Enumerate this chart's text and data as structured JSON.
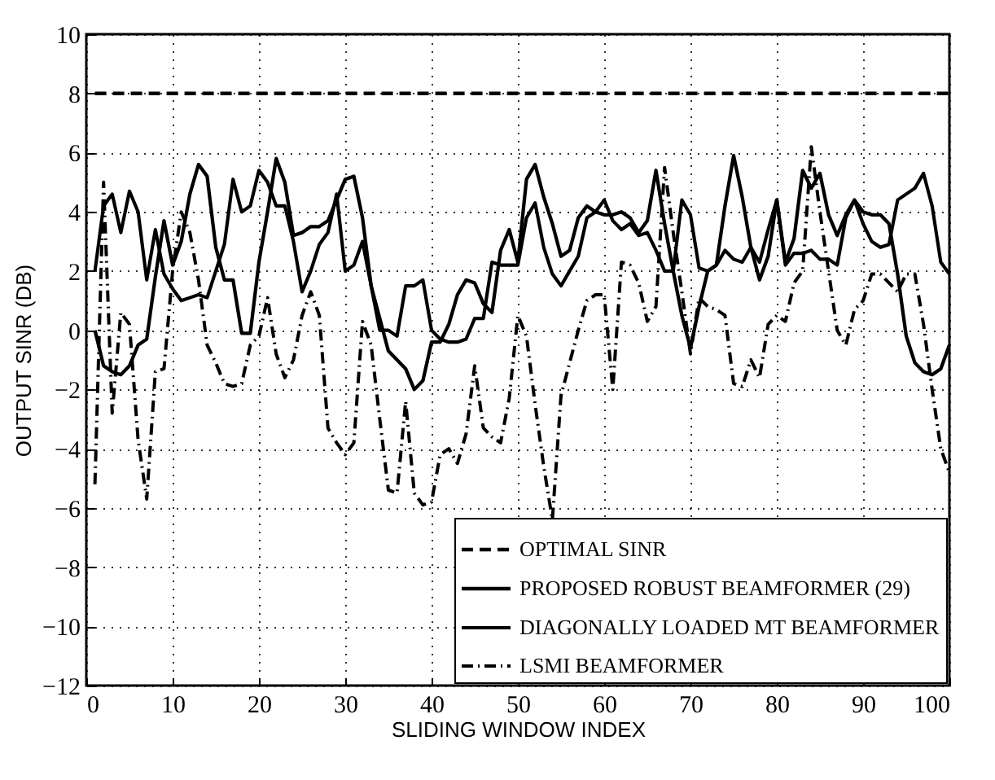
{
  "chart_data": {
    "type": "line",
    "xlabel": "SLIDING WINDOW INDEX",
    "ylabel": "OUTPUT SINR (DB)",
    "xlim": [
      0,
      100
    ],
    "xticks": [
      0,
      10,
      20,
      30,
      40,
      50,
      60,
      70,
      80,
      90,
      100
    ],
    "ylim": [
      -12,
      10
    ],
    "yticks": [
      -12,
      -10,
      -8,
      -6,
      -4,
      -2,
      0,
      2,
      4,
      6,
      8,
      10
    ],
    "grid": true,
    "legend": "bottom right",
    "marker": "none",
    "x": [
      1,
      2,
      3,
      4,
      5,
      6,
      7,
      8,
      9,
      10,
      11,
      12,
      13,
      14,
      15,
      16,
      17,
      18,
      19,
      20,
      21,
      22,
      23,
      24,
      25,
      26,
      27,
      28,
      29,
      30,
      31,
      32,
      33,
      34,
      35,
      36,
      37,
      38,
      39,
      40,
      41,
      42,
      43,
      44,
      45,
      46,
      47,
      48,
      49,
      50,
      51,
      52,
      53,
      54,
      55,
      56,
      57,
      58,
      59,
      60,
      61,
      62,
      63,
      64,
      65,
      66,
      67,
      68,
      69,
      70,
      71,
      72,
      73,
      74,
      75,
      76,
      77,
      78,
      79,
      80,
      81,
      82,
      83,
      84,
      85,
      86,
      87,
      88,
      89,
      90,
      91,
      92,
      93,
      94,
      95,
      96,
      97,
      98,
      99,
      100
    ],
    "series": [
      {
        "name": "OPTIMAL SINR",
        "color": "#000000",
        "line_style": "dashed",
        "x": [
          1,
          100
        ],
        "values": [
          8,
          8
        ]
      },
      {
        "name": "PROPOSED ROBUST BEAMFORMER (29)",
        "color": "#000000",
        "line_style": "solid",
        "values": [
          0,
          -1.2,
          -1.4,
          -1.5,
          -1.2,
          -0.5,
          -0.3,
          1.8,
          3.7,
          2.2,
          3.0,
          4.6,
          5.6,
          5.2,
          2.8,
          1.7,
          1.7,
          -0.1,
          -0.1,
          2.3,
          4.0,
          5.8,
          5.0,
          3.2,
          3.3,
          3.5,
          3.5,
          3.7,
          4.4,
          5.1,
          5.2,
          3.8,
          1.5,
          0.4,
          -0.7,
          -1.0,
          -1.3,
          -2.0,
          -1.7,
          -0.4,
          -0.4,
          0.2,
          1.2,
          1.7,
          1.6,
          0.9,
          0.6,
          2.7,
          3.4,
          2.3,
          5.1,
          5.6,
          4.5,
          3.6,
          2.5,
          2.7,
          3.8,
          4.2,
          4.0,
          3.9,
          3.9,
          4.0,
          3.8,
          3.3,
          3.7,
          5.4,
          3.6,
          2.0,
          0.5,
          -0.6,
          0.8,
          2.0,
          2.2,
          4.2,
          5.9,
          4.5,
          2.8,
          1.7,
          2.5,
          4.4,
          2.3,
          3.1,
          5.4,
          4.8,
          5.3,
          3.9,
          3.2,
          3.9,
          4.4,
          4.0,
          3.9,
          3.9,
          3.6,
          1.9,
          -0.2,
          -1.1,
          -1.4,
          -1.5,
          -1.3,
          -0.5
        ]
      },
      {
        "name": "DIAGONALLY LOADED MT BEAMFORMER",
        "color": "#000000",
        "line_style": "solid",
        "values": [
          2.0,
          4.2,
          4.6,
          3.3,
          4.7,
          4.0,
          1.7,
          3.4,
          1.9,
          1.4,
          1.0,
          1.1,
          1.2,
          1.1,
          2.0,
          2.9,
          5.1,
          4.0,
          4.2,
          5.4,
          5.0,
          4.2,
          4.2,
          3.0,
          1.3,
          2.0,
          2.9,
          3.3,
          4.6,
          2.0,
          2.2,
          3.0,
          1.5,
          0.0,
          0.0,
          -0.2,
          1.5,
          1.5,
          1.7,
          0.0,
          -0.3,
          -0.4,
          -0.4,
          -0.3,
          0.4,
          0.4,
          2.3,
          2.2,
          2.2,
          2.2,
          3.8,
          4.3,
          2.8,
          1.9,
          1.5,
          2.0,
          2.5,
          3.8,
          4.0,
          4.4,
          3.7,
          3.4,
          3.6,
          3.2,
          3.3,
          2.7,
          2.0,
          2.0,
          4.4,
          3.9,
          2.1,
          2.0,
          2.2,
          2.7,
          2.4,
          2.3,
          2.8,
          2.3,
          3.4,
          4.4,
          2.2,
          2.6,
          2.6,
          2.7,
          2.4,
          2.4,
          2.2,
          3.8,
          4.4,
          3.6,
          3.0,
          2.8,
          2.9,
          4.4,
          4.6,
          4.8,
          5.3,
          4.2,
          2.3,
          1.9
        ]
      },
      {
        "name": "LSMI BEAMFORMER",
        "color": "#000000",
        "line_style": "dashdot",
        "values": [
          -5.2,
          5.0,
          -2.8,
          0.6,
          0.2,
          -3.7,
          -5.7,
          -1.4,
          -1.3,
          2.0,
          4.0,
          3.3,
          1.7,
          -0.5,
          -1.1,
          -1.8,
          -1.9,
          -1.8,
          -0.5,
          -0.2,
          1.1,
          -0.8,
          -1.6,
          -1.0,
          0.5,
          1.3,
          0.5,
          -3.3,
          -3.8,
          -4.2,
          -3.8,
          0.3,
          -0.5,
          -3.0,
          -5.4,
          -5.5,
          -2.4,
          -5.5,
          -5.9,
          -5.8,
          -4.2,
          -4.0,
          -4.5,
          -3.5,
          -1.2,
          -3.3,
          -3.6,
          -3.8,
          -2.3,
          0.5,
          -0.2,
          -2.5,
          -4.6,
          -6.4,
          -2.2,
          -1.1,
          0.0,
          1.0,
          1.2,
          1.2,
          -2.0,
          2.3,
          2.2,
          1.6,
          0.3,
          0.8,
          5.5,
          3.3,
          1.3,
          -0.8,
          1.1,
          0.8,
          0.7,
          0.5,
          -1.8,
          -1.9,
          -1.0,
          -1.6,
          0.2,
          0.5,
          0.3,
          1.6,
          2.0,
          6.2,
          4.0,
          2.0,
          0.0,
          -0.5,
          0.7,
          1.0,
          1.9,
          1.9,
          1.6,
          1.3,
          1.9,
          1.9,
          0.2,
          -2.0,
          -4.0,
          -4.8
        ]
      }
    ]
  }
}
